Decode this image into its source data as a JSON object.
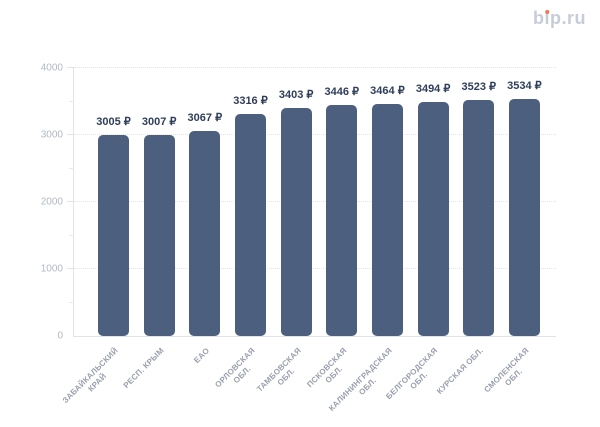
{
  "logo": {
    "text": "bip.ru",
    "part_b": "b",
    "part_i": "ı",
    "part_rest": "p.ru",
    "text_color": "#c7ccd8",
    "dot_color": "#ee7a58"
  },
  "chart_data": {
    "type": "bar",
    "title": "",
    "categories": [
      "ЗАБАЙКАЛЬСКИЙ КРАЙ",
      "РЕСП. КРЫМ",
      "ЕАО",
      "ОРЛОВСКАЯ ОБЛ.",
      "ТАМБОВСКАЯ ОБЛ.",
      "ПСКОВСКАЯ ОБЛ.",
      "КАЛИНИНГРАДСКАЯ ОБЛ.",
      "БЕЛГОРОДСКАЯ ОБЛ.",
      "КУРСКАЯ ОБЛ.",
      "СМОЛЕНСКАЯ ОБЛ."
    ],
    "category_lines": [
      [
        "ЗАБАЙКАЛЬСКИЙ",
        "КРАЙ"
      ],
      [
        "РЕСП. КРЫМ"
      ],
      [
        "ЕАО"
      ],
      [
        "ОРЛОВСКАЯ",
        "ОБЛ."
      ],
      [
        "ТАМБОВСКАЯ",
        "ОБЛ."
      ],
      [
        "ПСКОВСКАЯ",
        "ОБЛ."
      ],
      [
        "КАЛИНИНГРАДСКАЯ",
        "ОБЛ."
      ],
      [
        "БЕЛГОРОДСКАЯ",
        "ОБЛ."
      ],
      [
        "КУРСКАЯ ОБЛ."
      ],
      [
        "СМОЛЕНСКАЯ",
        "ОБЛ."
      ]
    ],
    "values": [
      3005,
      3007,
      3067,
      3316,
      3403,
      3446,
      3464,
      3494,
      3523,
      3534
    ],
    "value_suffix": " ₽",
    "xlabel": "",
    "ylabel": "",
    "ylim": [
      0,
      4000
    ],
    "y_ticks": [
      0,
      1000,
      2000,
      3000,
      4000
    ],
    "y_minor_ticks": [
      500,
      1500,
      2500,
      3500
    ],
    "grid": "horizontal-dotted",
    "legend_position": "none",
    "bar_color": "#4d5f7e",
    "value_label_color": "#2f3e5b",
    "category_label_color": "#99a0ad",
    "tick_label_color": "#b2b8c3"
  }
}
